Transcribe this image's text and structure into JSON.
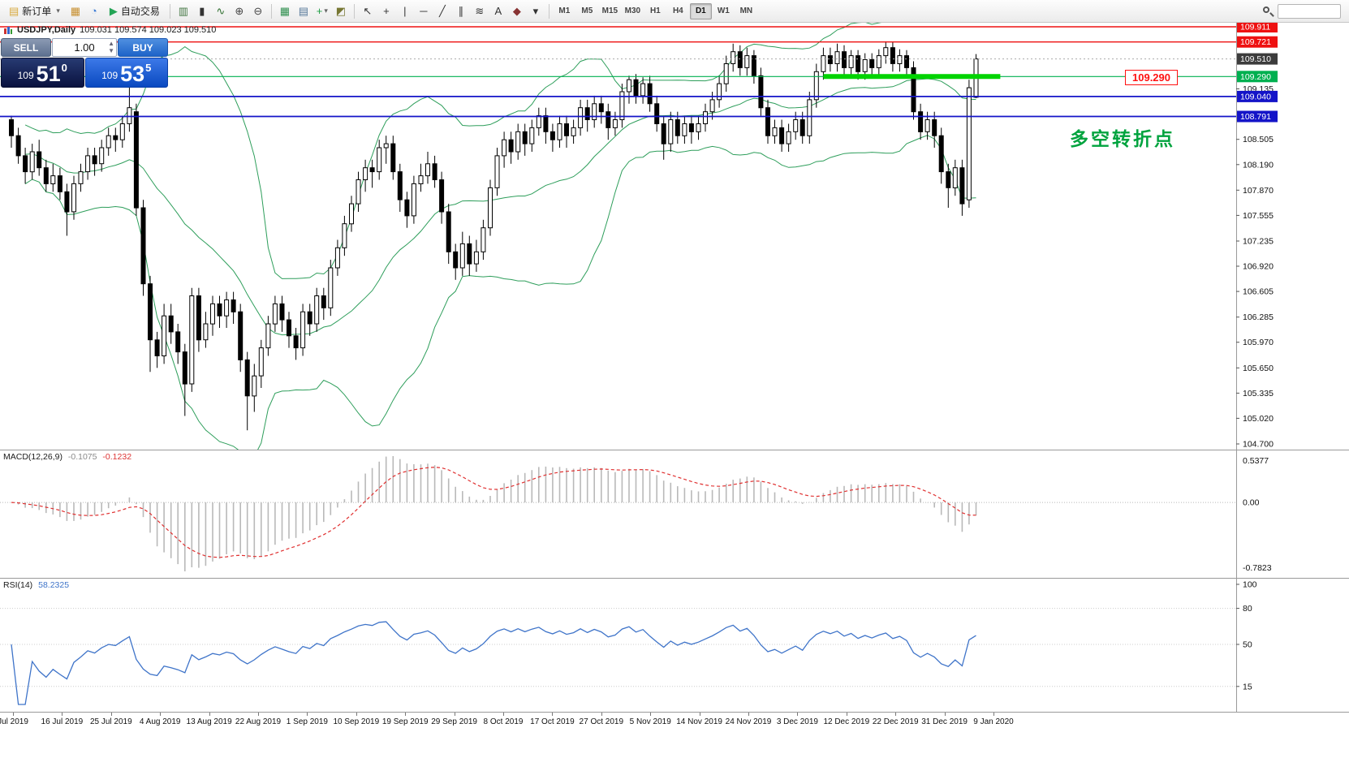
{
  "toolbar": {
    "items": [
      {
        "kind": "labeled",
        "name": "new-order-button",
        "glyph": "▤",
        "glyph_color": "#d7a83c",
        "label": "新订单",
        "caret": true
      },
      {
        "kind": "icon",
        "name": "charts-button",
        "glyph": "▦",
        "color": "#c78f2f"
      },
      {
        "kind": "icon",
        "name": "profiles-button",
        "glyph": "◔",
        "color": "#3a7bd5"
      },
      {
        "kind": "labeled",
        "name": "autotrading-button",
        "glyph": "▶",
        "glyph_color": "#23a455",
        "label": "自动交易"
      },
      {
        "kind": "sep"
      },
      {
        "kind": "icon",
        "name": "bar-chart-type-button",
        "glyph": "▥",
        "color": "#447744"
      },
      {
        "kind": "icon",
        "name": "candlestick-type-button",
        "glyph": "▮",
        "color": "#333333"
      },
      {
        "kind": "icon",
        "name": "line-chart-type-button",
        "glyph": "∿",
        "color": "#2f6f2f"
      },
      {
        "kind": "icon",
        "name": "zoom-in-button",
        "glyph": "⊕",
        "color": "#444444"
      },
      {
        "kind": "icon",
        "name": "zoom-out-button",
        "glyph": "⊖",
        "color": "#444444"
      },
      {
        "kind": "sep"
      },
      {
        "kind": "icon",
        "name": "tile-windows-button",
        "glyph": "▦",
        "color": "#2f8f4f"
      },
      {
        "kind": "icon",
        "name": "auto-arrange-button",
        "glyph": "▤",
        "color": "#557799"
      },
      {
        "kind": "icon",
        "name": "indicators-button",
        "glyph": "+",
        "color": "#1d9e43",
        "caret": true
      },
      {
        "kind": "icon",
        "name": "templates-button",
        "glyph": "◩",
        "color": "#777733"
      },
      {
        "kind": "sep"
      },
      {
        "kind": "icon",
        "name": "cursor-tool-button",
        "glyph": "↖",
        "color": "#333333"
      },
      {
        "kind": "icon",
        "name": "crosshair-tool-button",
        "glyph": "+",
        "color": "#333333"
      },
      {
        "kind": "icon",
        "name": "vertical-line-tool-button",
        "glyph": "|",
        "color": "#333333"
      },
      {
        "kind": "icon",
        "name": "horizontal-line-tool-button",
        "glyph": "─",
        "color": "#333333"
      },
      {
        "kind": "icon",
        "name": "trendline-tool-button",
        "glyph": "╱",
        "color": "#333333"
      },
      {
        "kind": "icon",
        "name": "channel-tool-button",
        "glyph": "∥",
        "color": "#333333"
      },
      {
        "kind": "icon",
        "name": "fibonacci-tool-button",
        "glyph": "≋",
        "color": "#333333"
      },
      {
        "kind": "icon",
        "name": "text-tool-button",
        "glyph": "A",
        "color": "#333333"
      },
      {
        "kind": "icon",
        "name": "label-tool-button",
        "glyph": "◆",
        "color": "#883333"
      },
      {
        "kind": "icon",
        "name": "shapes-dropdown-button",
        "glyph": "▾",
        "color": "#333333"
      },
      {
        "kind": "sep"
      }
    ],
    "timeframes": [
      "M1",
      "M5",
      "M15",
      "M30",
      "H1",
      "H4",
      "D1",
      "W1",
      "MN"
    ],
    "active_timeframe": "D1"
  },
  "chart_header": {
    "symbol": "USDJPY,Daily",
    "ohlc": "109.031 109.574 109.023 109.510"
  },
  "trade_panel": {
    "sell_label": "SELL",
    "buy_label": "BUY",
    "volume": "1.00",
    "sell_price": {
      "head": "109",
      "big": "51",
      "sup": "0"
    },
    "buy_price": {
      "head": "109",
      "big": "53",
      "sup": "5"
    }
  },
  "annotations": {
    "turning_point": "多空转折点",
    "price_callout": "109.290"
  },
  "indicators": {
    "macd": {
      "title": "MACD(12,26,9)",
      "value": "-0.1075",
      "signal_value": "-0.1232",
      "scale_labels": [
        "0.5377",
        "0.00",
        "-0.7823"
      ]
    },
    "rsi": {
      "title": "RSI(14)",
      "value": "58.2325",
      "scale_labels": [
        "100",
        "80",
        "50",
        "15"
      ],
      "levels": [
        80,
        50,
        15
      ]
    }
  },
  "chart_data": {
    "type": "candlestick",
    "symbol": "USDJPY",
    "timeframe": "Daily",
    "last_price": 109.51,
    "price_scale": {
      "max": 109.911,
      "min": 104.7,
      "ticks": [
        109.135,
        108.505,
        108.19,
        107.87,
        107.555,
        107.235,
        106.92,
        106.605,
        106.285,
        105.97,
        105.65,
        105.335,
        105.02,
        104.7
      ]
    },
    "price_labels": [
      {
        "text": "109.911",
        "color": "#ee1111"
      },
      {
        "text": "109.721",
        "color": "#ee1111"
      },
      {
        "text": "109.510",
        "color": "#3c3c3c"
      },
      {
        "text": "109.290",
        "color": "#00b050"
      },
      {
        "text": "109.040",
        "color": "#1414c8"
      },
      {
        "text": "108.791",
        "color": "#1414c8"
      }
    ],
    "hlines": [
      {
        "price": 109.911,
        "color": "#ee1111",
        "width": 1.4
      },
      {
        "price": 109.721,
        "color": "#ee1111",
        "width": 1.4
      },
      {
        "price": 109.29,
        "color": "#00b050",
        "width": 1.2
      },
      {
        "price": 109.04,
        "color": "#1414c8",
        "width": 1.8
      },
      {
        "price": 108.791,
        "color": "#1414c8",
        "width": 1.8
      }
    ],
    "thick_segment": {
      "price": 109.29,
      "from_index": 117,
      "to_index": 142.5,
      "color": "#00d400"
    },
    "bollinger": {
      "period": 20,
      "deviation": 2,
      "color": "#2e9e5b"
    },
    "time_labels": [
      "Jul 2019",
      "16 Jul 2019",
      "25 Jul 2019",
      "4 Aug 2019",
      "13 Aug 2019",
      "22 Aug 2019",
      "1 Sep 2019",
      "10 Sep 2019",
      "19 Sep 2019",
      "29 Sep 2019",
      "8 Oct 2019",
      "17 Oct 2019",
      "27 Oct 2019",
      "5 Nov 2019",
      "14 Nov 2019",
      "24 Nov 2019",
      "3 Dec 2019",
      "12 Dec 2019",
      "22 Dec 2019",
      "31 Dec 2019",
      "9 Jan 2020"
    ],
    "candles": [
      [
        108.75,
        108.8,
        108.4,
        108.55
      ],
      [
        108.55,
        108.65,
        108.2,
        108.3
      ],
      [
        108.3,
        108.4,
        107.95,
        108.1
      ],
      [
        108.1,
        108.45,
        108.0,
        108.35
      ],
      [
        108.35,
        108.5,
        108.05,
        108.15
      ],
      [
        108.15,
        108.25,
        107.85,
        107.95
      ],
      [
        107.95,
        108.2,
        107.85,
        108.05
      ],
      [
        108.05,
        108.15,
        107.75,
        107.85
      ],
      [
        107.85,
        107.95,
        107.3,
        107.6
      ],
      [
        107.6,
        108.05,
        107.5,
        107.95
      ],
      [
        107.95,
        108.2,
        107.85,
        108.1
      ],
      [
        108.1,
        108.4,
        108.0,
        108.3
      ],
      [
        108.3,
        108.4,
        108.05,
        108.2
      ],
      [
        108.2,
        108.5,
        108.1,
        108.4
      ],
      [
        108.4,
        108.65,
        108.3,
        108.55
      ],
      [
        108.55,
        108.65,
        108.35,
        108.5
      ],
      [
        108.5,
        108.8,
        108.4,
        108.7
      ],
      [
        108.7,
        109.18,
        108.6,
        108.9
      ],
      [
        108.85,
        108.95,
        107.55,
        107.65
      ],
      [
        107.65,
        107.75,
        106.55,
        106.7
      ],
      [
        106.7,
        106.8,
        105.6,
        106.0
      ],
      [
        106.0,
        106.1,
        105.65,
        105.8
      ],
      [
        105.8,
        106.45,
        105.7,
        106.3
      ],
      [
        106.3,
        106.45,
        105.95,
        106.1
      ],
      [
        106.1,
        106.2,
        105.7,
        105.85
      ],
      [
        105.85,
        105.95,
        105.05,
        105.45
      ],
      [
        105.45,
        106.65,
        105.35,
        106.55
      ],
      [
        106.55,
        106.65,
        105.85,
        106.0
      ],
      [
        106.0,
        106.35,
        105.9,
        106.2
      ],
      [
        106.2,
        106.55,
        106.05,
        106.45
      ],
      [
        106.45,
        106.55,
        106.15,
        106.3
      ],
      [
        106.3,
        106.6,
        106.15,
        106.5
      ],
      [
        106.5,
        106.6,
        106.2,
        106.35
      ],
      [
        106.35,
        106.45,
        105.6,
        105.75
      ],
      [
        105.75,
        105.85,
        104.87,
        105.3
      ],
      [
        105.3,
        105.7,
        105.1,
        105.55
      ],
      [
        105.55,
        106.0,
        105.4,
        105.9
      ],
      [
        105.9,
        106.3,
        105.8,
        106.2
      ],
      [
        106.2,
        106.55,
        106.1,
        106.45
      ],
      [
        106.45,
        106.55,
        106.1,
        106.25
      ],
      [
        106.25,
        106.35,
        105.9,
        106.05
      ],
      [
        106.05,
        106.15,
        105.75,
        105.9
      ],
      [
        105.9,
        106.45,
        105.8,
        106.35
      ],
      [
        106.35,
        106.45,
        106.05,
        106.2
      ],
      [
        106.2,
        106.65,
        106.1,
        106.55
      ],
      [
        106.55,
        106.65,
        106.25,
        106.4
      ],
      [
        106.4,
        107.0,
        106.3,
        106.9
      ],
      [
        106.9,
        107.25,
        106.8,
        107.15
      ],
      [
        107.15,
        107.55,
        107.05,
        107.45
      ],
      [
        107.45,
        107.8,
        107.35,
        107.7
      ],
      [
        107.7,
        108.1,
        107.6,
        108.0
      ],
      [
        108.0,
        108.25,
        107.85,
        108.15
      ],
      [
        108.15,
        108.25,
        107.9,
        108.1
      ],
      [
        108.1,
        108.5,
        108.0,
        108.4
      ],
      [
        108.4,
        108.55,
        108.2,
        108.45
      ],
      [
        108.45,
        108.55,
        108.0,
        108.1
      ],
      [
        108.1,
        108.2,
        107.6,
        107.75
      ],
      [
        107.75,
        107.85,
        107.4,
        107.55
      ],
      [
        107.55,
        108.05,
        107.45,
        107.95
      ],
      [
        107.95,
        108.2,
        107.85,
        108.05
      ],
      [
        108.05,
        108.35,
        107.95,
        108.2
      ],
      [
        108.2,
        108.3,
        107.9,
        108.0
      ],
      [
        108.0,
        108.1,
        107.45,
        107.6
      ],
      [
        107.6,
        107.7,
        106.95,
        107.1
      ],
      [
        107.1,
        107.2,
        106.75,
        106.9
      ],
      [
        106.9,
        107.35,
        106.8,
        107.2
      ],
      [
        107.2,
        107.3,
        106.8,
        106.95
      ],
      [
        106.95,
        107.25,
        106.85,
        107.1
      ],
      [
        107.1,
        107.5,
        107.0,
        107.4
      ],
      [
        107.4,
        108.0,
        107.3,
        107.9
      ],
      [
        107.9,
        108.4,
        107.8,
        108.3
      ],
      [
        108.3,
        108.6,
        108.15,
        108.5
      ],
      [
        108.5,
        108.6,
        108.2,
        108.35
      ],
      [
        108.35,
        108.7,
        108.25,
        108.6
      ],
      [
        108.6,
        108.7,
        108.3,
        108.45
      ],
      [
        108.45,
        108.75,
        108.35,
        108.65
      ],
      [
        108.65,
        108.9,
        108.55,
        108.8
      ],
      [
        108.8,
        108.9,
        108.45,
        108.6
      ],
      [
        108.6,
        108.7,
        108.35,
        108.5
      ],
      [
        108.5,
        108.8,
        108.4,
        108.7
      ],
      [
        108.7,
        108.8,
        108.4,
        108.55
      ],
      [
        108.55,
        108.75,
        108.45,
        108.65
      ],
      [
        108.65,
        109.0,
        108.55,
        108.9
      ],
      [
        108.9,
        109.0,
        108.6,
        108.75
      ],
      [
        108.75,
        109.05,
        108.65,
        108.95
      ],
      [
        108.95,
        109.05,
        108.7,
        108.85
      ],
      [
        108.85,
        108.95,
        108.5,
        108.65
      ],
      [
        108.65,
        108.85,
        108.55,
        108.75
      ],
      [
        108.75,
        109.2,
        108.65,
        109.1
      ],
      [
        109.1,
        109.3,
        108.95,
        109.25
      ],
      [
        109.25,
        109.32,
        108.95,
        109.05
      ],
      [
        109.05,
        109.28,
        108.95,
        109.2
      ],
      [
        109.2,
        109.3,
        108.85,
        108.95
      ],
      [
        108.95,
        109.05,
        108.6,
        108.7
      ],
      [
        108.7,
        108.8,
        108.25,
        108.45
      ],
      [
        108.45,
        108.85,
        108.35,
        108.75
      ],
      [
        108.75,
        108.85,
        108.45,
        108.55
      ],
      [
        108.55,
        108.8,
        108.45,
        108.7
      ],
      [
        108.7,
        108.8,
        108.45,
        108.6
      ],
      [
        108.6,
        108.8,
        108.5,
        108.7
      ],
      [
        108.7,
        108.95,
        108.6,
        108.85
      ],
      [
        108.85,
        109.1,
        108.75,
        109.0
      ],
      [
        109.0,
        109.3,
        108.9,
        109.2
      ],
      [
        109.2,
        109.55,
        109.1,
        109.45
      ],
      [
        109.45,
        109.7,
        109.35,
        109.6
      ],
      [
        109.6,
        109.68,
        109.3,
        109.4
      ],
      [
        109.4,
        109.65,
        109.3,
        109.55
      ],
      [
        109.55,
        109.62,
        109.2,
        109.3
      ],
      [
        109.3,
        109.4,
        108.8,
        108.9
      ],
      [
        108.9,
        109.0,
        108.45,
        108.55
      ],
      [
        108.55,
        108.75,
        108.45,
        108.65
      ],
      [
        108.65,
        108.75,
        108.35,
        108.45
      ],
      [
        108.45,
        108.7,
        108.35,
        108.6
      ],
      [
        108.6,
        108.85,
        108.5,
        108.75
      ],
      [
        108.75,
        108.85,
        108.45,
        108.55
      ],
      [
        108.55,
        109.1,
        108.45,
        109.0
      ],
      [
        109.0,
        109.45,
        108.9,
        109.35
      ],
      [
        109.35,
        109.65,
        109.25,
        109.55
      ],
      [
        109.55,
        109.65,
        109.35,
        109.45
      ],
      [
        109.45,
        109.7,
        109.35,
        109.6
      ],
      [
        109.6,
        109.68,
        109.3,
        109.4
      ],
      [
        109.4,
        109.62,
        109.3,
        109.55
      ],
      [
        109.55,
        109.62,
        109.25,
        109.35
      ],
      [
        109.35,
        109.58,
        109.25,
        109.5
      ],
      [
        109.5,
        109.58,
        109.3,
        109.4
      ],
      [
        109.4,
        109.63,
        109.3,
        109.55
      ],
      [
        109.55,
        109.73,
        109.45,
        109.65
      ],
      [
        109.65,
        109.72,
        109.35,
        109.45
      ],
      [
        109.45,
        109.63,
        109.35,
        109.55
      ],
      [
        109.55,
        109.62,
        109.3,
        109.4
      ],
      [
        109.4,
        109.48,
        108.75,
        108.85
      ],
      [
        108.85,
        108.95,
        108.5,
        108.6
      ],
      [
        108.6,
        108.85,
        108.5,
        108.75
      ],
      [
        108.75,
        108.85,
        108.4,
        108.55
      ],
      [
        108.55,
        108.65,
        107.95,
        108.1
      ],
      [
        108.1,
        108.2,
        107.65,
        107.9
      ],
      [
        107.9,
        108.25,
        107.8,
        108.15
      ],
      [
        108.15,
        108.25,
        107.55,
        107.7
      ],
      [
        107.75,
        109.25,
        107.65,
        109.15
      ],
      [
        109.03,
        109.57,
        109.02,
        109.51
      ]
    ]
  }
}
